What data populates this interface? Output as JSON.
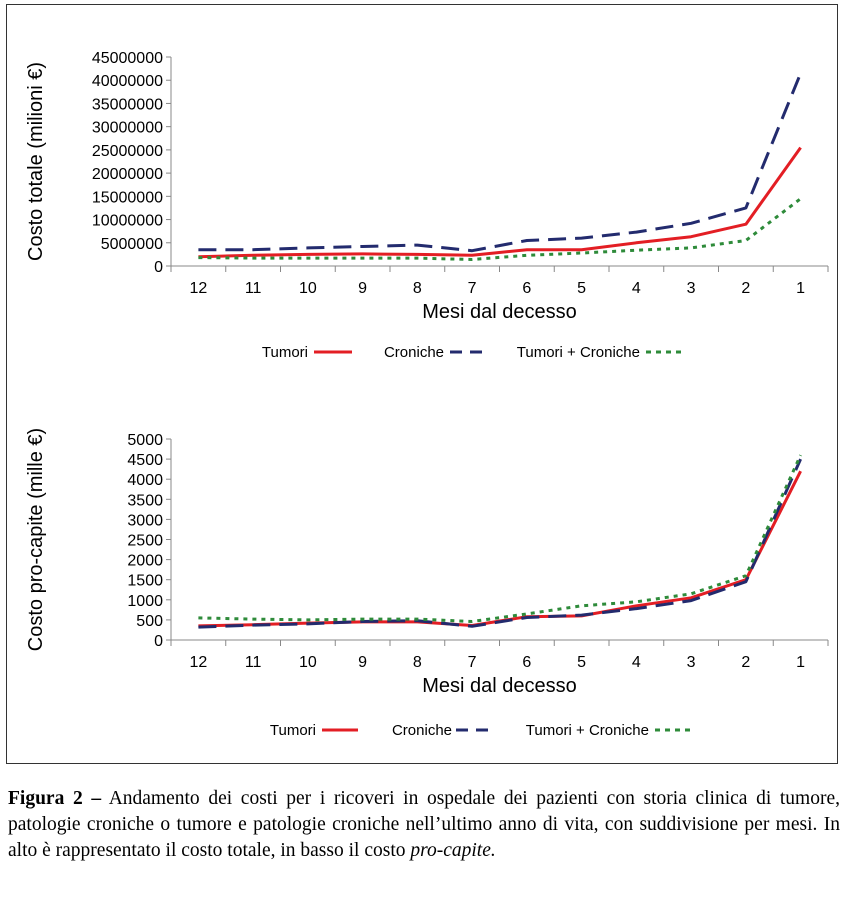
{
  "chart_data": [
    {
      "type": "line",
      "ylabel": "Costo totale (milioni €)",
      "xlabel": "Mesi dal decesso",
      "categories": [
        "12",
        "11",
        "10",
        "9",
        "8",
        "7",
        "6",
        "5",
        "4",
        "3",
        "2",
        "1"
      ],
      "ylim": [
        0,
        45000000
      ],
      "yticks": [
        "0",
        "5000000",
        "10000000",
        "15000000",
        "20000000",
        "25000000",
        "30000000",
        "35000000",
        "40000000",
        "45000000"
      ],
      "series": [
        {
          "name": "Tumori",
          "style": "solid",
          "color": "#e31e24",
          "values": [
            2000000,
            2300000,
            2500000,
            2600000,
            2500000,
            2300000,
            3500000,
            3500000,
            5000000,
            6300000,
            9000000,
            25500000
          ]
        },
        {
          "name": "Croniche",
          "style": "dashed",
          "color": "#232b6e",
          "values": [
            3500000,
            3500000,
            3900000,
            4200000,
            4500000,
            3300000,
            5500000,
            6000000,
            7300000,
            9200000,
            12500000,
            41500000
          ]
        },
        {
          "name": "Tumori + Croniche",
          "style": "dotted",
          "color": "#2e8b3a",
          "values": [
            1800000,
            1700000,
            1700000,
            1700000,
            1700000,
            1400000,
            2300000,
            2800000,
            3400000,
            3900000,
            5500000,
            14500000
          ]
        }
      ],
      "legend": [
        {
          "label": "Tumori"
        },
        {
          "label": "Croniche"
        },
        {
          "label": "Tumori + Croniche"
        }
      ]
    },
    {
      "type": "line",
      "ylabel": "Costo pro-capite (mille €)",
      "xlabel": "Mesi dal decesso",
      "categories": [
        "12",
        "11",
        "10",
        "9",
        "8",
        "7",
        "6",
        "5",
        "4",
        "3",
        "2",
        "1"
      ],
      "ylim": [
        0,
        5000
      ],
      "yticks": [
        "0",
        "500",
        "1000",
        "1500",
        "2000",
        "2500",
        "3000",
        "3500",
        "4000",
        "4500",
        "5000"
      ],
      "series": [
        {
          "name": "Tumori",
          "style": "solid",
          "color": "#e31e24",
          "values": [
            350,
            380,
            420,
            450,
            450,
            360,
            580,
            600,
            850,
            1050,
            1500,
            4200
          ]
        },
        {
          "name": "Croniche",
          "style": "dashed",
          "color": "#232b6e",
          "values": [
            320,
            370,
            400,
            460,
            480,
            340,
            560,
            620,
            780,
            980,
            1450,
            4500
          ]
        },
        {
          "name": "Tumori + Croniche",
          "style": "dotted",
          "color": "#2e8b3a",
          "values": [
            550,
            520,
            500,
            520,
            520,
            460,
            650,
            850,
            950,
            1150,
            1600,
            4600
          ]
        }
      ],
      "legend": [
        {
          "label": "Tumori"
        },
        {
          "label": "Croniche"
        },
        {
          "label": "Tumori + Croniche"
        }
      ]
    }
  ],
  "caption": {
    "label": "Figura 2 –",
    "text": " Andamento dei costi per i ricoveri in ospedale dei pazienti con storia clinica di tumore, patologie croniche o tumore e patologie croniche nell’ultimo anno di vita, con suddivisione per mesi. In alto è rappresentato il costo totale, in basso il costo ",
    "italic": "pro-capite."
  }
}
